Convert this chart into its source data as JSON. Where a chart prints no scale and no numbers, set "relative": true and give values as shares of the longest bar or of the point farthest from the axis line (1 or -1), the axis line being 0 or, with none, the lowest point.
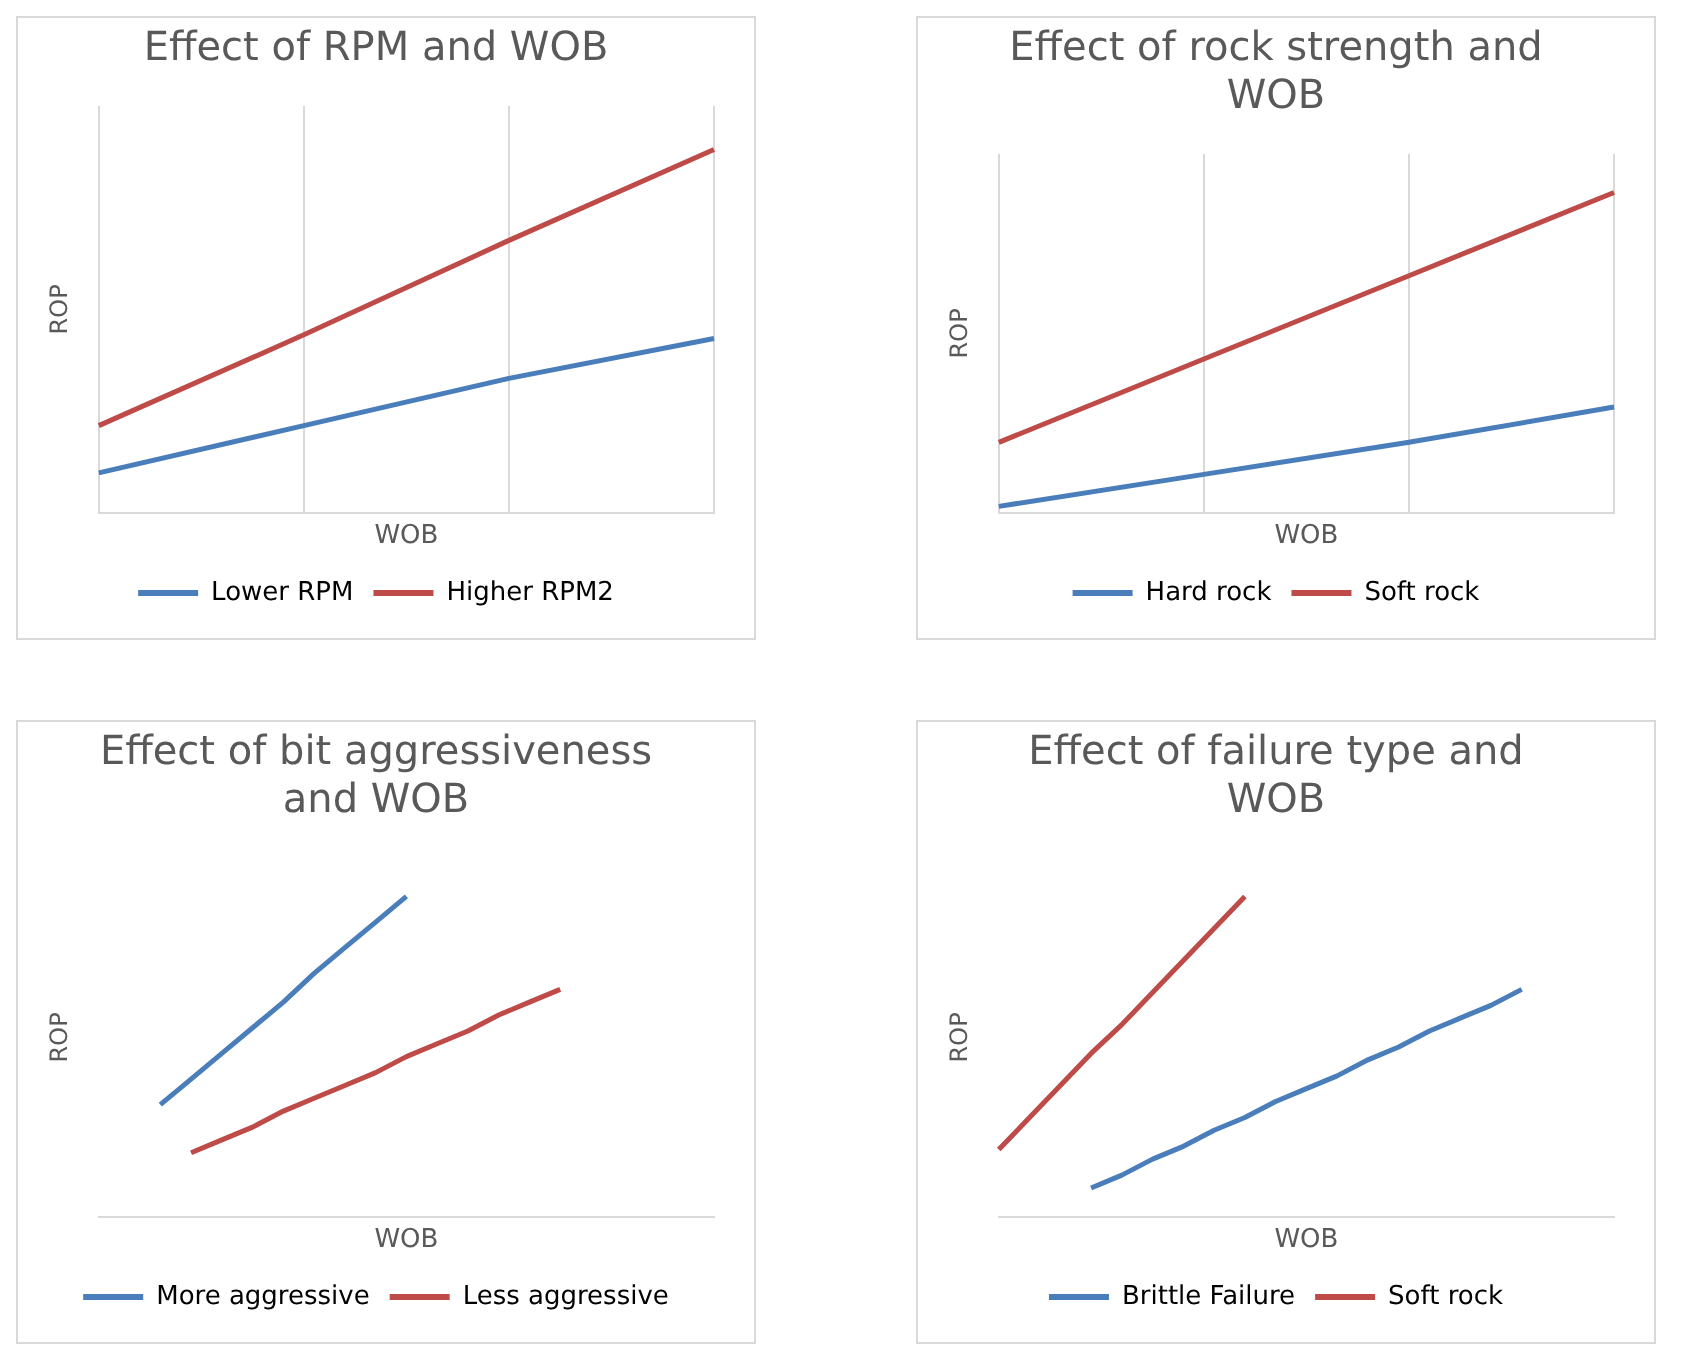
{
  "chart_data": [
    {
      "type": "line",
      "title": "Effect of RPM and WOB",
      "xlabel": "WOB",
      "ylabel": "ROP",
      "relative": true,
      "grid": "x",
      "legend": "bottom",
      "categories": [
        null,
        null,
        null,
        null
      ],
      "series": [
        {
          "name": "Lower RPM",
          "color": "#4a7ebb",
          "values": [
            0.11,
            0.24,
            0.37,
            0.48
          ]
        },
        {
          "name": "Higher RPM2",
          "color": "#be4b48",
          "values": [
            0.24,
            0.49,
            0.75,
            1.0
          ]
        }
      ]
    },
    {
      "type": "line",
      "title": "Effect of rock strength and WOB",
      "xlabel": "WOB",
      "ylabel": "ROP",
      "relative": true,
      "grid": "x",
      "legend": "bottom",
      "categories": [
        null,
        null,
        null,
        null
      ],
      "series": [
        {
          "name": "Hard rock",
          "color": "#4a7ebb",
          "values": [
            0.02,
            0.12,
            0.22,
            0.33
          ]
        },
        {
          "name": "Soft rock",
          "color": "#be4b48",
          "values": [
            0.22,
            0.48,
            0.74,
            1.0
          ]
        }
      ]
    },
    {
      "type": "line",
      "title": "Effect of bit aggressiveness and WOB",
      "xlabel": "WOB",
      "ylabel": "ROP",
      "relative": true,
      "legend": "bottom",
      "categories": [
        null,
        null,
        null,
        null,
        null,
        null,
        null,
        null,
        null,
        null,
        null,
        null,
        null,
        null,
        null,
        null,
        null,
        null,
        null,
        null,
        null
      ],
      "series": [
        {
          "name": "More aggressive",
          "color": "#4a7ebb",
          "values": [
            null,
            null,
            0.35,
            0.43,
            0.51,
            0.59,
            0.67,
            0.76,
            0.84,
            0.92,
            1.0,
            null,
            null,
            null,
            null,
            null,
            null,
            null,
            null,
            null,
            null
          ]
        },
        {
          "name": "Less aggressive",
          "color": "#be4b48",
          "values": [
            null,
            null,
            null,
            0.2,
            0.24,
            0.28,
            0.33,
            0.37,
            0.41,
            0.45,
            0.5,
            0.54,
            0.58,
            0.63,
            0.67,
            0.71,
            null,
            null,
            null,
            null,
            null
          ]
        }
      ]
    },
    {
      "type": "line",
      "title": "Effect of failure type and WOB",
      "xlabel": "WOB",
      "ylabel": "ROP",
      "relative": true,
      "legend": "bottom",
      "categories": [
        null,
        null,
        null,
        null,
        null,
        null,
        null,
        null,
        null,
        null,
        null,
        null,
        null,
        null,
        null,
        null,
        null,
        null,
        null,
        null,
        null
      ],
      "series": [
        {
          "name": "Brittle Failure",
          "color": "#4a7ebb",
          "values": [
            null,
            null,
            null,
            0.09,
            0.13,
            0.18,
            0.22,
            0.27,
            0.31,
            0.36,
            0.4,
            0.44,
            0.49,
            0.53,
            0.58,
            0.62,
            0.66,
            0.71,
            null,
            null,
            null
          ]
        },
        {
          "name": "Soft rock",
          "color": "#be4b48",
          "values": [
            0.21,
            0.31,
            0.41,
            0.51,
            0.6,
            0.7,
            0.8,
            0.9,
            1.0,
            null,
            null,
            null,
            null,
            null,
            null,
            null,
            null,
            null,
            null,
            null,
            null
          ]
        }
      ]
    }
  ]
}
